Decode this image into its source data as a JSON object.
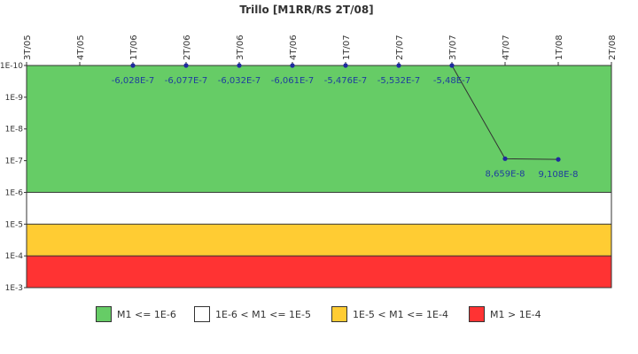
{
  "chart_data": {
    "type": "line",
    "title": "Trillo [M1RR/RS 2T/08]",
    "xlabel": "",
    "ylabel": "",
    "categories": [
      "3T/05",
      "4T/05",
      "1T/06",
      "2T/06",
      "3T/06",
      "4T/06",
      "1T/07",
      "2T/07",
      "3T/07",
      "4T/07",
      "1T/08",
      "2T/08"
    ],
    "y_scale": "log",
    "y_tick_labels": [
      "1E-10",
      "1E-9",
      "1E-8",
      "1E-7",
      "1E-6",
      "1E-5",
      "1E-4",
      "1E-3"
    ],
    "grid": false,
    "series": [
      {
        "values": [
          null,
          null,
          1e-10,
          1e-10,
          1e-10,
          1e-10,
          1e-10,
          1e-10,
          1e-10,
          8.659e-08,
          9.108e-08,
          null
        ],
        "labels": [
          null,
          null,
          "-6,028E-7",
          "-6,077E-7",
          "-6,032E-7",
          "-6,061E-7",
          "-5,476E-7",
          "-5,532E-7",
          "-5,48E-7",
          "8,659E-8",
          "9,108E-8",
          null
        ],
        "color": "#333333",
        "marker_color": "#1f2a9e"
      }
    ],
    "bands": [
      {
        "from": 1e-10,
        "to": 1e-06,
        "color": "#66cc66",
        "label": "M1 <= 1E-6"
      },
      {
        "from": 1e-06,
        "to": 1e-05,
        "color": "#ffffff",
        "label": "1E-6 < M1 <= 1E-5"
      },
      {
        "from": 1e-05,
        "to": 0.0001,
        "color": "#ffcc33",
        "label": "1E-5 < M1 <= 1E-4"
      },
      {
        "from": 0.0001,
        "to": 0.001,
        "color": "#ff3333",
        "label": "M1 > 1E-4"
      }
    ],
    "legend_position": "bottom"
  }
}
